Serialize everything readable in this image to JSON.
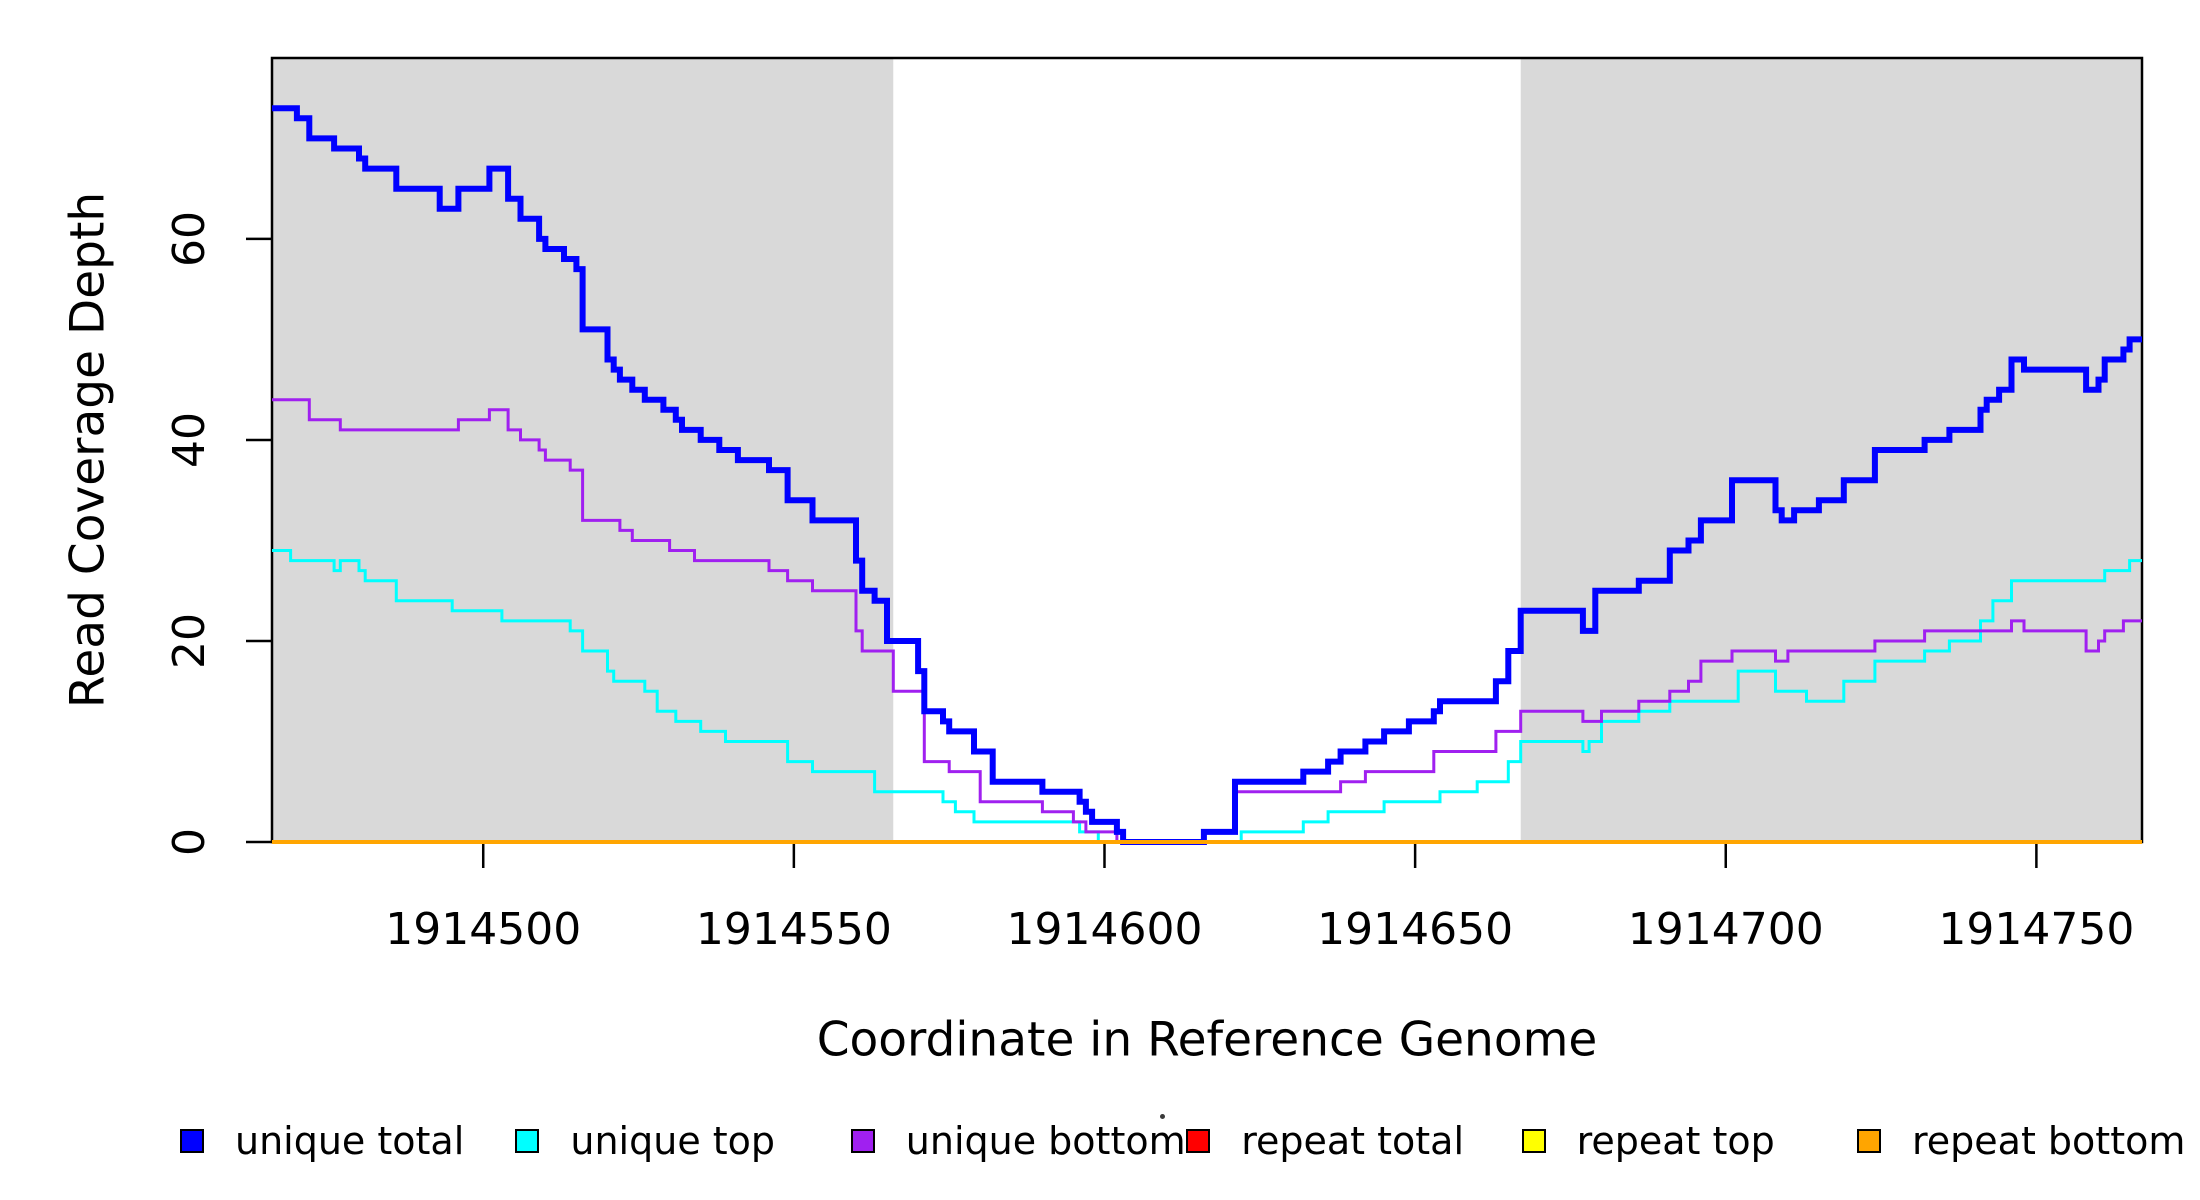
{
  "chart_data": {
    "type": "line",
    "subtype": "step-after-coverage",
    "title": "",
    "xlabel": "Coordinate in Reference Genome",
    "ylabel": "Read Coverage Depth",
    "xlim": [
      1914466,
      1914767
    ],
    "ylim": [
      0,
      78
    ],
    "x_ticks": [
      1914500,
      1914550,
      1914600,
      1914650,
      1914700,
      1914750
    ],
    "y_ticks": [
      0,
      20,
      40,
      60
    ],
    "grid": false,
    "panel_background": "#ffffff",
    "shade_color": "#d9d9d9",
    "box_color": "#000000",
    "shaded_regions": [
      {
        "x0": 1914466,
        "x1": 1914566
      },
      {
        "x0": 1914667,
        "x1": 1914767
      }
    ],
    "series": [
      {
        "name": "unique top",
        "color": "#00ffff",
        "width": 3,
        "points": [
          [
            1914466,
            29
          ],
          [
            1914469,
            28
          ],
          [
            1914476,
            27
          ],
          [
            1914477,
            28
          ],
          [
            1914480,
            27
          ],
          [
            1914481,
            26
          ],
          [
            1914486,
            24
          ],
          [
            1914495,
            23
          ],
          [
            1914503,
            22
          ],
          [
            1914514,
            21
          ],
          [
            1914516,
            19
          ],
          [
            1914520,
            17
          ],
          [
            1914521,
            16
          ],
          [
            1914526,
            15
          ],
          [
            1914528,
            13
          ],
          [
            1914531,
            12
          ],
          [
            1914535,
            11
          ],
          [
            1914539,
            10
          ],
          [
            1914549,
            8
          ],
          [
            1914553,
            7
          ],
          [
            1914563,
            5
          ],
          [
            1914574,
            4
          ],
          [
            1914576,
            3
          ],
          [
            1914579,
            2
          ],
          [
            1914596,
            1
          ],
          [
            1914599,
            0
          ],
          [
            1914622,
            1
          ],
          [
            1914632,
            2
          ],
          [
            1914636,
            3
          ],
          [
            1914645,
            4
          ],
          [
            1914654,
            5
          ],
          [
            1914660,
            6
          ],
          [
            1914665,
            8
          ],
          [
            1914667,
            10
          ],
          [
            1914677,
            9
          ],
          [
            1914678,
            10
          ],
          [
            1914680,
            12
          ],
          [
            1914686,
            13
          ],
          [
            1914691,
            14
          ],
          [
            1914702,
            17
          ],
          [
            1914708,
            15
          ],
          [
            1914713,
            14
          ],
          [
            1914719,
            16
          ],
          [
            1914724,
            18
          ],
          [
            1914732,
            19
          ],
          [
            1914736,
            20
          ],
          [
            1914741,
            22
          ],
          [
            1914743,
            24
          ],
          [
            1914746,
            26
          ],
          [
            1914761,
            27
          ],
          [
            1914765,
            28
          ],
          [
            1914767,
            28
          ]
        ]
      },
      {
        "name": "unique bottom",
        "color": "#a020f0",
        "width": 3,
        "points": [
          [
            1914466,
            44
          ],
          [
            1914472,
            42
          ],
          [
            1914477,
            41
          ],
          [
            1914496,
            42
          ],
          [
            1914501,
            43
          ],
          [
            1914504,
            41
          ],
          [
            1914506,
            40
          ],
          [
            1914509,
            39
          ],
          [
            1914510,
            38
          ],
          [
            1914514,
            37
          ],
          [
            1914516,
            32
          ],
          [
            1914522,
            31
          ],
          [
            1914524,
            30
          ],
          [
            1914530,
            29
          ],
          [
            1914534,
            28
          ],
          [
            1914546,
            27
          ],
          [
            1914549,
            26
          ],
          [
            1914553,
            25
          ],
          [
            1914560,
            21
          ],
          [
            1914561,
            19
          ],
          [
            1914566,
            15
          ],
          [
            1914571,
            8
          ],
          [
            1914575,
            7
          ],
          [
            1914580,
            4
          ],
          [
            1914590,
            3
          ],
          [
            1914595,
            2
          ],
          [
            1914597,
            1
          ],
          [
            1914602,
            0
          ],
          [
            1914616,
            1
          ],
          [
            1914621,
            5
          ],
          [
            1914638,
            6
          ],
          [
            1914642,
            7
          ],
          [
            1914653,
            9
          ],
          [
            1914663,
            11
          ],
          [
            1914667,
            13
          ],
          [
            1914677,
            12
          ],
          [
            1914680,
            13
          ],
          [
            1914686,
            14
          ],
          [
            1914691,
            15
          ],
          [
            1914694,
            16
          ],
          [
            1914696,
            18
          ],
          [
            1914701,
            19
          ],
          [
            1914708,
            18
          ],
          [
            1914710,
            19
          ],
          [
            1914724,
            20
          ],
          [
            1914732,
            21
          ],
          [
            1914746,
            22
          ],
          [
            1914748,
            21
          ],
          [
            1914758,
            19
          ],
          [
            1914760,
            20
          ],
          [
            1914761,
            21
          ],
          [
            1914764,
            22
          ],
          [
            1914767,
            22
          ]
        ]
      },
      {
        "name": "unique total",
        "color": "#0000ff",
        "width": 6,
        "points": [
          [
            1914466,
            73
          ],
          [
            1914470,
            72
          ],
          [
            1914472,
            70
          ],
          [
            1914476,
            69
          ],
          [
            1914480,
            68
          ],
          [
            1914481,
            67
          ],
          [
            1914486,
            65
          ],
          [
            1914493,
            63
          ],
          [
            1914496,
            65
          ],
          [
            1914501,
            67
          ],
          [
            1914504,
            64
          ],
          [
            1914506,
            62
          ],
          [
            1914509,
            60
          ],
          [
            1914510,
            59
          ],
          [
            1914513,
            58
          ],
          [
            1914515,
            57
          ],
          [
            1914516,
            51
          ],
          [
            1914520,
            48
          ],
          [
            1914521,
            47
          ],
          [
            1914522,
            46
          ],
          [
            1914524,
            45
          ],
          [
            1914526,
            44
          ],
          [
            1914529,
            43
          ],
          [
            1914531,
            42
          ],
          [
            1914532,
            41
          ],
          [
            1914535,
            40
          ],
          [
            1914538,
            39
          ],
          [
            1914541,
            38
          ],
          [
            1914546,
            37
          ],
          [
            1914549,
            34
          ],
          [
            1914553,
            32
          ],
          [
            1914560,
            28
          ],
          [
            1914561,
            25
          ],
          [
            1914563,
            24
          ],
          [
            1914565,
            20
          ],
          [
            1914570,
            17
          ],
          [
            1914571,
            13
          ],
          [
            1914574,
            12
          ],
          [
            1914575,
            11
          ],
          [
            1914579,
            9
          ],
          [
            1914582,
            6
          ],
          [
            1914590,
            5
          ],
          [
            1914596,
            4
          ],
          [
            1914597,
            3
          ],
          [
            1914598,
            2
          ],
          [
            1914602,
            1
          ],
          [
            1914603,
            0
          ],
          [
            1914616,
            1
          ],
          [
            1914621,
            6
          ],
          [
            1914632,
            7
          ],
          [
            1914636,
            8
          ],
          [
            1914638,
            9
          ],
          [
            1914642,
            10
          ],
          [
            1914645,
            11
          ],
          [
            1914649,
            12
          ],
          [
            1914653,
            13
          ],
          [
            1914654,
            14
          ],
          [
            1914663,
            16
          ],
          [
            1914665,
            19
          ],
          [
            1914667,
            23
          ],
          [
            1914677,
            21
          ],
          [
            1914679,
            25
          ],
          [
            1914686,
            26
          ],
          [
            1914691,
            29
          ],
          [
            1914694,
            30
          ],
          [
            1914696,
            32
          ],
          [
            1914701,
            36
          ],
          [
            1914708,
            33
          ],
          [
            1914709,
            32
          ],
          [
            1914711,
            33
          ],
          [
            1914715,
            34
          ],
          [
            1914719,
            36
          ],
          [
            1914724,
            39
          ],
          [
            1914732,
            40
          ],
          [
            1914736,
            41
          ],
          [
            1914741,
            43
          ],
          [
            1914742,
            44
          ],
          [
            1914744,
            45
          ],
          [
            1914746,
            48
          ],
          [
            1914748,
            47
          ],
          [
            1914758,
            45
          ],
          [
            1914760,
            46
          ],
          [
            1914761,
            48
          ],
          [
            1914764,
            49
          ],
          [
            1914765,
            50
          ],
          [
            1914767,
            50
          ]
        ]
      },
      {
        "name": "repeat total",
        "color": "#ff0000",
        "width": 3,
        "points": [
          [
            1914466,
            0
          ],
          [
            1914767,
            0
          ]
        ]
      },
      {
        "name": "repeat top",
        "color": "#ffff00",
        "width": 3,
        "points": [
          [
            1914466,
            0
          ],
          [
            1914767,
            0
          ]
        ]
      },
      {
        "name": "repeat bottom",
        "color": "#ffa500",
        "width": 4,
        "points": [
          [
            1914466,
            0
          ],
          [
            1914767,
            0
          ]
        ]
      }
    ]
  },
  "legend": {
    "items": [
      {
        "label": "unique total",
        "color": "#0000ff"
      },
      {
        "label": "unique top",
        "color": "#00ffff"
      },
      {
        "label": "unique bottom",
        "color": "#a020f0"
      },
      {
        "label": "repeat total",
        "color": "#ff0000"
      },
      {
        "label": "repeat top",
        "color": "#ffff00"
      },
      {
        "label": "repeat bottom",
        "color": "#ffa500"
      }
    ]
  }
}
